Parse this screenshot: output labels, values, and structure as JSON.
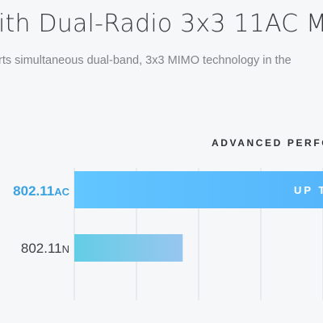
{
  "header": {
    "title": "ith Dual-Radio 3x3 11AC M",
    "subtitle": "rts simultaneous dual-band, 3x3 MIMO technology in the"
  },
  "chart_data": {
    "type": "bar",
    "orientation": "horizontal",
    "title": "ADVANCED PERFO",
    "categories": [
      {
        "main": "802.11",
        "suffix": "AC"
      },
      {
        "main": "802.11",
        "suffix": "N"
      }
    ],
    "bar_labels": [
      "UP T",
      ""
    ],
    "values": [
      1,
      0.436
    ],
    "xlim": [
      0,
      1
    ],
    "grid": true,
    "colors": {
      "ac_label": "#3aa2e0",
      "n_label": "#3d4046",
      "ac_bar_start": "#62c6ff",
      "ac_bar_end": "#56b6fb",
      "n_bar_start": "#63cde6",
      "n_bar_end": "#98c6f0",
      "grid": "#d9dde1"
    }
  }
}
